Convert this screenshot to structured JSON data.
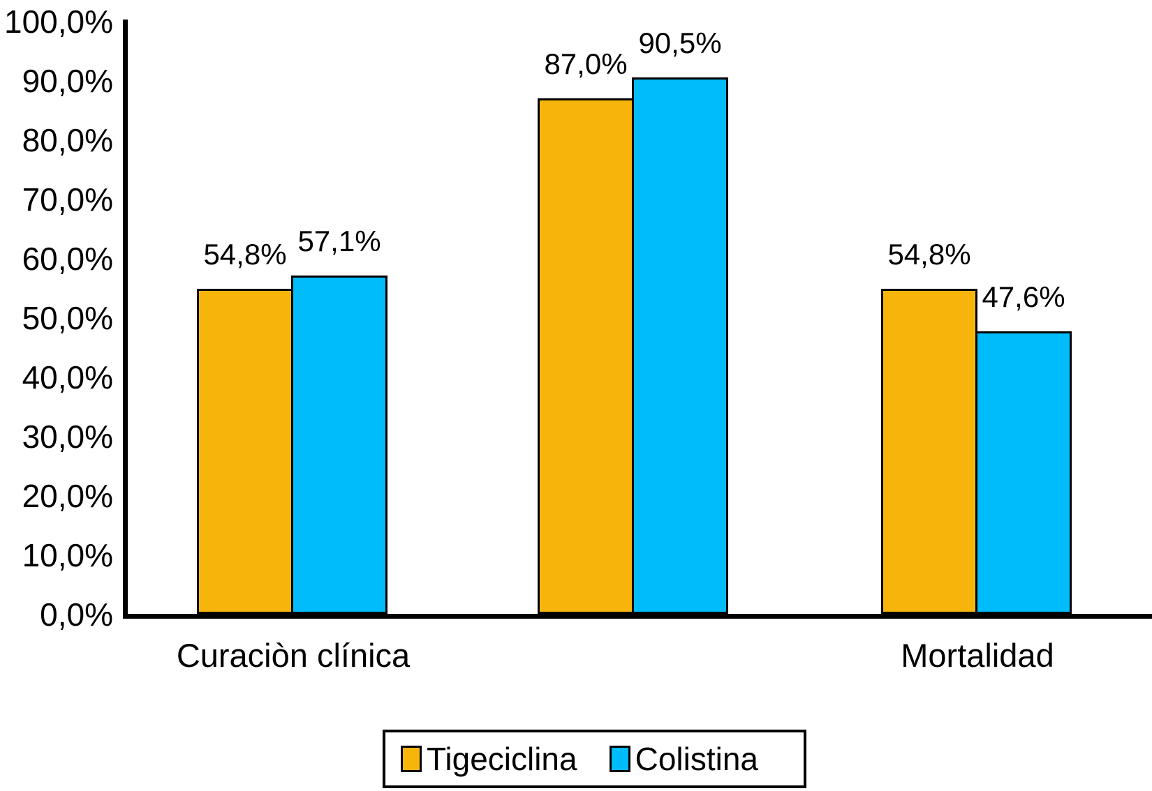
{
  "chart_data": {
    "type": "bar",
    "categories": [
      "Curaciòn clínica",
      "",
      "Mortalidad"
    ],
    "series": [
      {
        "name": "Tigeciclina",
        "color": "#F7B50C",
        "values": [
          54.8,
          87.0,
          54.8
        ],
        "value_labels": [
          "54,8%",
          "87,0%",
          "54,8%"
        ]
      },
      {
        "name": "Colistina",
        "color": "#00BCFA",
        "values": [
          57.1,
          90.5,
          47.6
        ],
        "value_labels": [
          "57,1%",
          "90,5%",
          "47,6%"
        ]
      }
    ],
    "y_ticks": [
      "100,0%",
      "90,0%",
      "80,0%",
      "70,0%",
      "60,0%",
      "50,0%",
      "40,0%",
      "30,0%",
      "20,0%",
      "10,0%",
      "0,0%"
    ],
    "ylim": [
      0,
      100
    ],
    "grid": false,
    "bar_border_color": "#000000",
    "axis_color": "#000000",
    "legend_position": "bottom",
    "title": "",
    "xlabel": "",
    "ylabel": ""
  }
}
